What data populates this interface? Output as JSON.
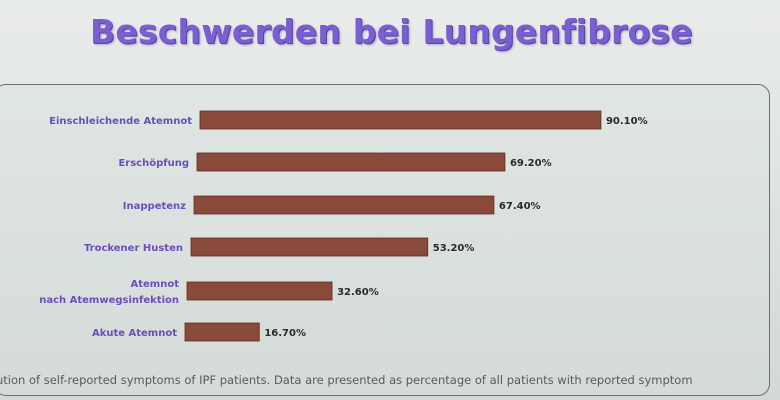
{
  "slide": {
    "title": "Beschwerden bei Lungenfibrose",
    "caption": "ution of self-reported symptoms of IPF patients. Data are presented as percentage of all patients with reported symptom"
  },
  "colors": {
    "title": "#7a5fd0",
    "category_label": "#6a4fb8",
    "bar_fill": "#8a4a3a",
    "value_label": "#2a2a2a"
  },
  "chart_data": {
    "type": "bar",
    "orientation": "horizontal",
    "categories": [
      [
        "Einschleichende Atemnot"
      ],
      [
        "Erschöpfung"
      ],
      [
        "Inappetenz"
      ],
      [
        "Trockener Husten"
      ],
      [
        "Atemnot",
        "nach Atemwegsinfektion"
      ],
      [
        "Akute Atemnot"
      ]
    ],
    "values": [
      90.1,
      69.2,
      67.4,
      53.2,
      32.6,
      16.7
    ],
    "value_labels": [
      "90.10%",
      "69.20%",
      "67.40%",
      "53.20%",
      "32.60%",
      "16.70%"
    ],
    "unit": "%",
    "xlim": [
      0,
      100
    ],
    "grid": false,
    "legend": "none"
  }
}
